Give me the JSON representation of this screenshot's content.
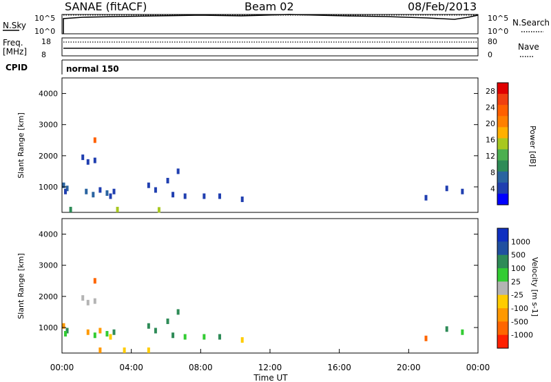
{
  "header": {
    "title": "SANAE (fitACF)",
    "beam": "Beam 02",
    "date": "08/Feb/2013"
  },
  "noise_panel": {
    "left_label": "N.Sky",
    "right_label": "N.Search",
    "tick_top": "10^5",
    "tick_bottom": "10^0"
  },
  "freq_panel": {
    "left_label_1": "Freq.",
    "left_label_2": "[MHz]",
    "left_ticks": [
      "18",
      "8"
    ],
    "right_label": "Nave",
    "right_ticks": [
      "80",
      "0"
    ]
  },
  "cpid_panel": {
    "label": "CPID",
    "mode": "normal 150"
  },
  "axes": {
    "ylabel": "Slant Range [km]",
    "y_ticks": [
      "4000",
      "3000",
      "2000",
      "1000"
    ],
    "x_ticks": [
      "00:00",
      "04:00",
      "08:00",
      "12:00",
      "16:00",
      "20:00",
      "00:00"
    ],
    "xlabel": "Time UT"
  },
  "power_colorbar": {
    "label": "Power [dB]",
    "ticks": [
      "28",
      "24",
      "20",
      "16",
      "12",
      "8",
      "4"
    ],
    "colors": [
      "#0000ff",
      "#203fb0",
      "#2a64a0",
      "#2e8b57",
      "#4caf50",
      "#a8c820",
      "#ffb000",
      "#ff8000",
      "#ff6000",
      "#f04010",
      "#e00000"
    ]
  },
  "velocity_colorbar": {
    "label": "Velocity [m s-1]",
    "ticks": [
      "1000",
      "500",
      "100",
      "25",
      "-25",
      "-100",
      "-500",
      "-1000"
    ],
    "colors": [
      "#1030c0",
      "#2050a0",
      "#2e8b57",
      "#33cc33",
      "#b4b4b4",
      "#ffcc00",
      "#ff9900",
      "#ff6600",
      "#ff2000"
    ]
  },
  "chart_data": [
    {
      "type": "heatmap",
      "title": "",
      "ylabel": "Slant Range [km]",
      "xlabel": "Time UT",
      "xlim": [
        "00:00",
        "24:00"
      ],
      "ylim": [
        180,
        4500
      ],
      "quantity": "Power [dB]",
      "clim": [
        0,
        30
      ],
      "points": [
        {
          "t": 0.1,
          "r": 1050,
          "v": 6
        },
        {
          "t": 0.3,
          "r": 950,
          "v": 8
        },
        {
          "t": 0.2,
          "r": 850,
          "v": 5
        },
        {
          "t": 1.2,
          "r": 1950,
          "v": 4
        },
        {
          "t": 1.5,
          "r": 1800,
          "v": 5
        },
        {
          "t": 1.9,
          "r": 1850,
          "v": 4
        },
        {
          "t": 1.4,
          "r": 850,
          "v": 6
        },
        {
          "t": 1.8,
          "r": 750,
          "v": 8
        },
        {
          "t": 2.2,
          "r": 900,
          "v": 5
        },
        {
          "t": 2.6,
          "r": 800,
          "v": 7
        },
        {
          "t": 2.8,
          "r": 700,
          "v": 4
        },
        {
          "t": 3.0,
          "r": 850,
          "v": 5
        },
        {
          "t": 5.0,
          "r": 1050,
          "v": 4
        },
        {
          "t": 5.4,
          "r": 900,
          "v": 5
        },
        {
          "t": 6.1,
          "r": 1200,
          "v": 4
        },
        {
          "t": 6.7,
          "r": 1500,
          "v": 4
        },
        {
          "t": 6.4,
          "r": 750,
          "v": 5
        },
        {
          "t": 7.1,
          "r": 700,
          "v": 4
        },
        {
          "t": 8.2,
          "r": 700,
          "v": 4
        },
        {
          "t": 9.1,
          "r": 700,
          "v": 4
        },
        {
          "t": 10.4,
          "r": 600,
          "v": 4
        },
        {
          "t": 21.0,
          "r": 650,
          "v": 4
        },
        {
          "t": 22.2,
          "r": 950,
          "v": 4
        },
        {
          "t": 23.1,
          "r": 850,
          "v": 5
        },
        {
          "t": 0.5,
          "r": 270,
          "v": 10
        },
        {
          "t": 3.2,
          "r": 270,
          "v": 14
        },
        {
          "t": 5.6,
          "r": 260,
          "v": 16
        },
        {
          "t": 1.9,
          "r": 2500,
          "v": 22
        }
      ]
    },
    {
      "type": "heatmap",
      "title": "",
      "ylabel": "Slant Range [km]",
      "xlabel": "Time UT",
      "xlim": [
        "00:00",
        "24:00"
      ],
      "ylim": [
        180,
        4500
      ],
      "quantity": "Velocity [m s-1]",
      "clim": [
        -1000,
        1000
      ],
      "points": [
        {
          "t": 0.1,
          "r": 1050,
          "v": -150
        },
        {
          "t": 0.3,
          "r": 900,
          "v": 200
        },
        {
          "t": 0.2,
          "r": 800,
          "v": 60
        },
        {
          "t": 1.2,
          "r": 1950,
          "v": 10
        },
        {
          "t": 1.5,
          "r": 1800,
          "v": 0
        },
        {
          "t": 1.9,
          "r": 1850,
          "v": -10
        },
        {
          "t": 1.5,
          "r": 850,
          "v": -120
        },
        {
          "t": 1.9,
          "r": 750,
          "v": 80
        },
        {
          "t": 2.2,
          "r": 900,
          "v": -200
        },
        {
          "t": 2.6,
          "r": 800,
          "v": 40
        },
        {
          "t": 2.8,
          "r": 700,
          "v": -60
        },
        {
          "t": 3.0,
          "r": 850,
          "v": 150
        },
        {
          "t": 5.0,
          "r": 1050,
          "v": 300
        },
        {
          "t": 5.4,
          "r": 900,
          "v": 120
        },
        {
          "t": 6.1,
          "r": 1200,
          "v": 200
        },
        {
          "t": 6.7,
          "r": 1500,
          "v": 150
        },
        {
          "t": 6.4,
          "r": 750,
          "v": 100
        },
        {
          "t": 7.1,
          "r": 700,
          "v": 60
        },
        {
          "t": 8.2,
          "r": 700,
          "v": 80
        },
        {
          "t": 9.1,
          "r": 700,
          "v": 120
        },
        {
          "t": 10.4,
          "r": 600,
          "v": -60
        },
        {
          "t": 21.0,
          "r": 650,
          "v": -600
        },
        {
          "t": 22.2,
          "r": 950,
          "v": 200
        },
        {
          "t": 23.1,
          "r": 850,
          "v": 50
        },
        {
          "t": 2.2,
          "r": 270,
          "v": -120
        },
        {
          "t": 3.6,
          "r": 270,
          "v": -80
        },
        {
          "t": 5.0,
          "r": 270,
          "v": -100
        },
        {
          "t": 1.9,
          "r": 2500,
          "v": -700
        }
      ]
    }
  ]
}
